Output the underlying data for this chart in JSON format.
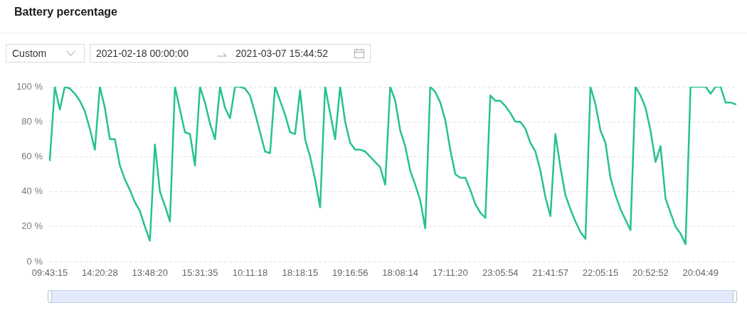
{
  "chart_data": {
    "type": "line",
    "title": "Battery percentage",
    "annotations": [
      "Custom",
      "2021-02-18 00:00:00",
      "2021-03-07 15:44:52"
    ],
    "categories": [
      "09:43:15",
      null,
      null,
      null,
      null,
      null,
      null,
      null,
      null,
      null,
      "14:20:28",
      null,
      null,
      null,
      null,
      null,
      null,
      null,
      null,
      null,
      "13:48:20",
      null,
      null,
      null,
      null,
      null,
      null,
      null,
      null,
      null,
      "15:31:35",
      null,
      null,
      null,
      null,
      null,
      null,
      null,
      null,
      null,
      "10:11:18",
      null,
      null,
      null,
      null,
      null,
      null,
      null,
      null,
      null,
      "18:18:15",
      null,
      null,
      null,
      null,
      null,
      null,
      null,
      null,
      null,
      "19:16:56",
      null,
      null,
      null,
      null,
      null,
      null,
      null,
      null,
      null,
      "18:08:14",
      null,
      null,
      null,
      null,
      null,
      null,
      null,
      null,
      null,
      "17:11:20",
      null,
      null,
      null,
      null,
      null,
      null,
      null,
      null,
      null,
      "23:05:54",
      null,
      null,
      null,
      null,
      null,
      null,
      null,
      null,
      null,
      "21:41:57",
      null,
      null,
      null,
      null,
      null,
      null,
      null,
      null,
      null,
      "22:05:15",
      null,
      null,
      null,
      null,
      null,
      null,
      null,
      null,
      null,
      "20:52:52",
      null,
      null,
      null,
      null,
      null,
      null,
      null,
      null,
      null,
      "20:04:49",
      null,
      null,
      null,
      null,
      null,
      null,
      null
    ],
    "series": [
      {
        "color": "#26c28d",
        "values": [
          58,
          100,
          87,
          100,
          99,
          96,
          92,
          86,
          76,
          64,
          100,
          88,
          70,
          70,
          55,
          47,
          41,
          34,
          29,
          20,
          12,
          67,
          40,
          32,
          23,
          100,
          87,
          74,
          73,
          55,
          100,
          91,
          79,
          70,
          100,
          88,
          82,
          100,
          100,
          99,
          95,
          85,
          74,
          63,
          62,
          100,
          92,
          84,
          74,
          73,
          98,
          70,
          60,
          47,
          31,
          100,
          85,
          70,
          100,
          80,
          68,
          64,
          64,
          63,
          60,
          57,
          54,
          44,
          100,
          92,
          75,
          66,
          52,
          44,
          35,
          19,
          100,
          97,
          91,
          81,
          64,
          50,
          48,
          48,
          41,
          33,
          28,
          25,
          95,
          92,
          92,
          89,
          85,
          80,
          80,
          76,
          68,
          63,
          52,
          37,
          26,
          73,
          54,
          38,
          30,
          23,
          17,
          13,
          100,
          90,
          75,
          68,
          48,
          38,
          30,
          24,
          18,
          100,
          95,
          88,
          75,
          57,
          66,
          36,
          28,
          20,
          16,
          10,
          100,
          100,
          100,
          100,
          96,
          100,
          100,
          91,
          91,
          90
        ]
      }
    ],
    "ylim": [
      0,
      100
    ],
    "yticks": [
      {
        "value": 0,
        "label": "0 %"
      },
      {
        "value": 20,
        "label": "20 %"
      },
      {
        "value": 40,
        "label": "40 %"
      },
      {
        "value": 60,
        "label": "60 %"
      },
      {
        "value": 80,
        "label": "80 %"
      },
      {
        "value": 100,
        "label": "100 %"
      }
    ],
    "grid": "y",
    "marker": "none",
    "line_style": "solid"
  }
}
